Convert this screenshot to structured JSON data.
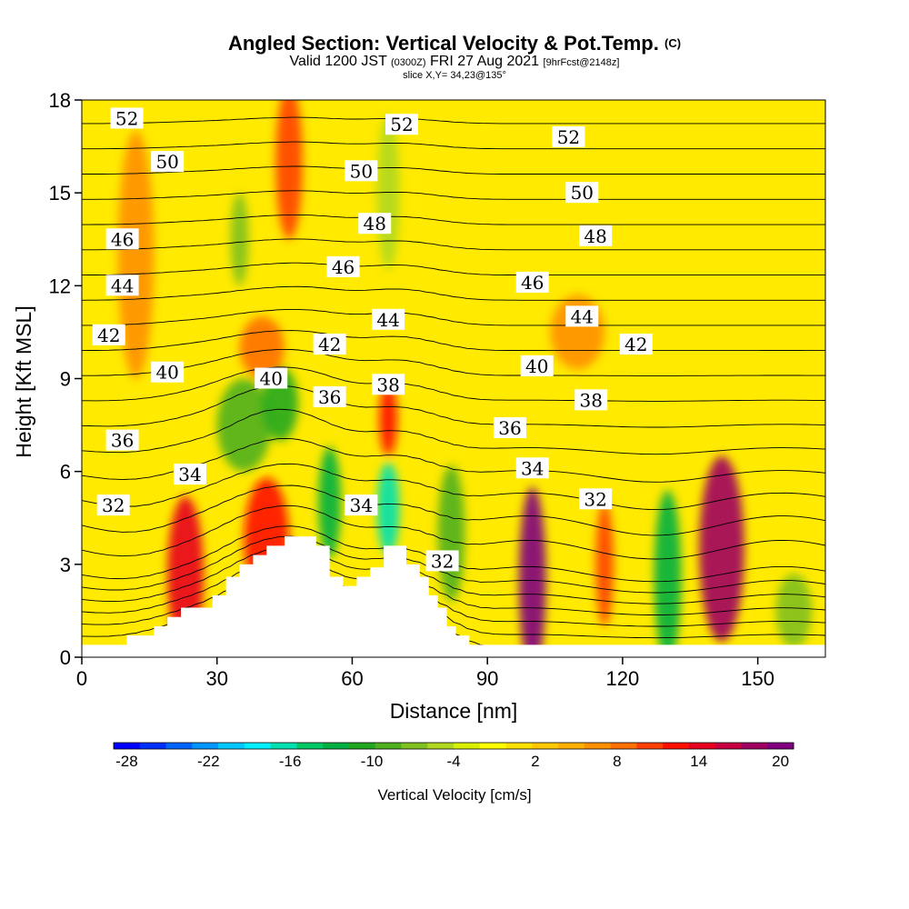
{
  "header": {
    "title": "Angled Section: Vertical Velocity & Pot.Temp.",
    "title_tag": "(C)",
    "subtitle_valid": "Valid 1200 JST",
    "subtitle_utc": "(0300Z)",
    "subtitle_date": "FRI 27 Aug 2021",
    "subtitle_fcst": "[9hrFcst@2148z]",
    "slice": "slice X,Y= 34,23@135°"
  },
  "colors": {
    "background_field": "#ffea00",
    "terrain": "#ffffff",
    "contour": "#000000"
  },
  "chart_data": {
    "type": "heatmap",
    "xlabel": "Distance [nm]",
    "ylabel": "Height [Kft MSL]",
    "xlim": [
      0,
      165
    ],
    "ylim": [
      0,
      18
    ],
    "x_ticks": [
      0,
      30,
      60,
      90,
      120,
      150
    ],
    "y_ticks": [
      0,
      3,
      6,
      9,
      12,
      15,
      18
    ],
    "colorbar": {
      "label": "Vertical Velocity [cm/s]",
      "tick_labels": [
        "-28",
        "-22",
        "-16",
        "-10",
        "-4",
        "2",
        "8",
        "14",
        "20"
      ],
      "tick_values": [
        -28,
        -22,
        -16,
        -10,
        -4,
        2,
        8,
        14,
        20
      ],
      "colors": [
        "#0000ff",
        "#0030ff",
        "#0064ff",
        "#0096ff",
        "#00c8ff",
        "#00f0ff",
        "#00e0b0",
        "#00c864",
        "#00b040",
        "#22a820",
        "#50b020",
        "#80c020",
        "#b0d820",
        "#d8f000",
        "#ffff00",
        "#ffe000",
        "#ffc800",
        "#ffb000",
        "#ff9000",
        "#ff7000",
        "#ff4000",
        "#ff1000",
        "#e80020",
        "#c80040",
        "#a00060",
        "#800080"
      ]
    },
    "terrain_profile": [
      [
        0,
        0.4
      ],
      [
        10,
        0.4
      ],
      [
        10,
        0.7
      ],
      [
        16,
        0.7
      ],
      [
        16,
        1
      ],
      [
        19,
        1
      ],
      [
        19,
        1.3
      ],
      [
        22,
        1.3
      ],
      [
        22,
        1.6
      ],
      [
        29,
        1.6
      ],
      [
        29,
        2
      ],
      [
        32,
        2
      ],
      [
        32,
        2.6
      ],
      [
        35,
        2.6
      ],
      [
        35,
        3
      ],
      [
        38,
        3
      ],
      [
        38,
        3.3
      ],
      [
        41,
        3.3
      ],
      [
        41,
        3.6
      ],
      [
        45,
        3.6
      ],
      [
        45,
        3.9
      ],
      [
        52,
        3.9
      ],
      [
        52,
        3.6
      ],
      [
        55,
        3.6
      ],
      [
        55,
        2.6
      ],
      [
        58,
        2.6
      ],
      [
        58,
        2.3
      ],
      [
        61,
        2.3
      ],
      [
        61,
        2.6
      ],
      [
        64,
        2.6
      ],
      [
        64,
        2.9
      ],
      [
        67,
        2.9
      ],
      [
        67,
        3.6
      ],
      [
        72,
        3.6
      ],
      [
        72,
        3
      ],
      [
        75,
        3
      ],
      [
        75,
        2.6
      ],
      [
        77,
        2.6
      ],
      [
        77,
        2
      ],
      [
        79,
        2
      ],
      [
        79,
        1.6
      ],
      [
        81,
        1.6
      ],
      [
        81,
        1
      ],
      [
        83,
        1
      ],
      [
        83,
        0.7
      ],
      [
        86,
        0.7
      ],
      [
        86,
        0.4
      ],
      [
        165,
        0.4
      ]
    ],
    "vertical_velocity_cells": [
      {
        "x": 23,
        "y": 2.7,
        "value": 14,
        "rx": 4,
        "ry": 2.5
      },
      {
        "x": 41,
        "y": 3.8,
        "value": 12,
        "rx": 5,
        "ry": 2
      },
      {
        "x": 36,
        "y": 7.5,
        "value": -8,
        "rx": 6,
        "ry": 1.5
      },
      {
        "x": 44,
        "y": 8.2,
        "value": -10,
        "rx": 4,
        "ry": 1.2
      },
      {
        "x": 46,
        "y": 16,
        "value": 10,
        "rx": 3,
        "ry": 2.5
      },
      {
        "x": 55,
        "y": 5,
        "value": -12,
        "rx": 2.5,
        "ry": 1.8
      },
      {
        "x": 68,
        "y": 4.8,
        "value": -16,
        "rx": 2.5,
        "ry": 1.5
      },
      {
        "x": 68,
        "y": 7.7,
        "value": 12,
        "rx": 2,
        "ry": 1.2
      },
      {
        "x": 35,
        "y": 13.5,
        "value": -6,
        "rx": 2,
        "ry": 1.5
      },
      {
        "x": 68,
        "y": 15,
        "value": -5,
        "rx": 2.5,
        "ry": 2.5
      },
      {
        "x": 82,
        "y": 4,
        "value": -8,
        "rx": 3,
        "ry": 2.2
      },
      {
        "x": 100,
        "y": 2.5,
        "value": 20,
        "rx": 3,
        "ry": 3
      },
      {
        "x": 116,
        "y": 3,
        "value": 10,
        "rx": 2,
        "ry": 2
      },
      {
        "x": 130,
        "y": 2.6,
        "value": -12,
        "rx": 3,
        "ry": 2.8
      },
      {
        "x": 142,
        "y": 3.5,
        "value": 18,
        "rx": 5,
        "ry": 3
      },
      {
        "x": 158,
        "y": 1.5,
        "value": -6,
        "rx": 4,
        "ry": 1.2
      },
      {
        "x": 110,
        "y": 10.5,
        "value": 6,
        "rx": 6,
        "ry": 1.2
      },
      {
        "x": 40,
        "y": 10,
        "value": 8,
        "rx": 5,
        "ry": 1
      },
      {
        "x": 12,
        "y": 13,
        "value": 6,
        "rx": 4,
        "ry": 4
      }
    ],
    "isentrope_labels": [
      {
        "text": "52",
        "x": 10,
        "y": 17.4
      },
      {
        "text": "52",
        "x": 71,
        "y": 17.2
      },
      {
        "text": "52",
        "x": 108,
        "y": 16.8
      },
      {
        "text": "50",
        "x": 19,
        "y": 16.0
      },
      {
        "text": "50",
        "x": 62,
        "y": 15.7
      },
      {
        "text": "50",
        "x": 111,
        "y": 15.0
      },
      {
        "text": "48",
        "x": 65,
        "y": 14.0
      },
      {
        "text": "48",
        "x": 114,
        "y": 13.6
      },
      {
        "text": "46",
        "x": 9,
        "y": 13.5
      },
      {
        "text": "46",
        "x": 58,
        "y": 12.6
      },
      {
        "text": "46",
        "x": 100,
        "y": 12.1
      },
      {
        "text": "44",
        "x": 9,
        "y": 12.0
      },
      {
        "text": "44",
        "x": 68,
        "y": 10.9
      },
      {
        "text": "44",
        "x": 111,
        "y": 11.0
      },
      {
        "text": "42",
        "x": 6,
        "y": 10.4
      },
      {
        "text": "42",
        "x": 55,
        "y": 10.1
      },
      {
        "text": "42",
        "x": 123,
        "y": 10.1
      },
      {
        "text": "40",
        "x": 19,
        "y": 9.2
      },
      {
        "text": "40",
        "x": 42,
        "y": 9.0
      },
      {
        "text": "40",
        "x": 101,
        "y": 9.4
      },
      {
        "text": "38",
        "x": 68,
        "y": 8.8
      },
      {
        "text": "38",
        "x": 113,
        "y": 8.3
      },
      {
        "text": "36",
        "x": 55,
        "y": 8.4
      },
      {
        "text": "36",
        "x": 95,
        "y": 7.4
      },
      {
        "text": "36",
        "x": 9,
        "y": 7.0
      },
      {
        "text": "34",
        "x": 24,
        "y": 5.9
      },
      {
        "text": "34",
        "x": 100,
        "y": 6.1
      },
      {
        "text": "34",
        "x": 62,
        "y": 4.9
      },
      {
        "text": "32",
        "x": 7,
        "y": 4.9
      },
      {
        "text": "32",
        "x": 114,
        "y": 5.1
      },
      {
        "text": "32",
        "x": 80,
        "y": 3.1
      }
    ],
    "isentrope_levels": [
      31,
      31.5,
      32,
      32.5,
      33,
      33.5,
      34,
      35,
      36,
      37,
      38,
      39,
      40,
      41,
      42,
      43,
      44,
      45,
      46,
      47,
      48,
      49,
      50,
      51,
      52,
      53
    ]
  }
}
